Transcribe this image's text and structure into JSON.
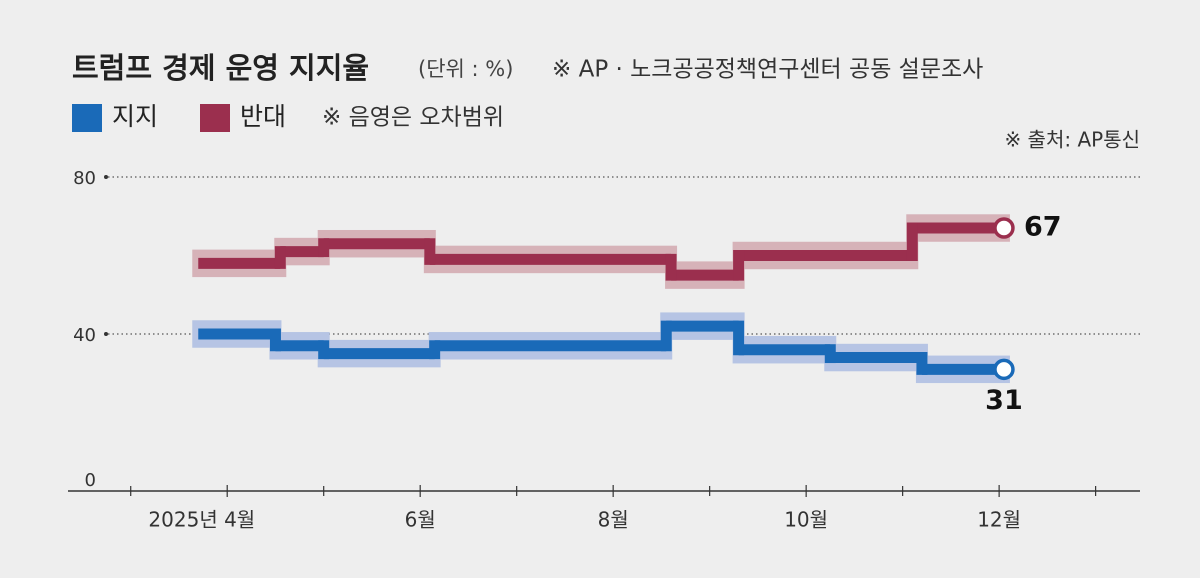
{
  "chart_data": {
    "type": "step",
    "title": "트럼프 경제 운영 지지율",
    "unit_note": "(단위 : %)",
    "subtitle": "※ AP · 노크공공정책연구센터 공동 설문조사",
    "band_note": "※ 음영은 오차범위",
    "source": "※ 출처: AP통신",
    "series": [
      {
        "name": "지지",
        "color": "#1a6ab8",
        "band_color": "#b6c4e4",
        "margin": 3.5,
        "x": [
          3.7,
          4.5,
          5.0,
          6.15,
          8.55,
          9.3,
          10.25,
          11.2,
          12.05
        ],
        "values": [
          40,
          37,
          35,
          37,
          42,
          36,
          34,
          31,
          31
        ]
      },
      {
        "name": "반대",
        "color": "#9b2f4e",
        "band_color": "#d6b2b8",
        "margin": 3.5,
        "x": [
          3.7,
          4.55,
          5.0,
          6.1,
          8.6,
          9.3,
          11.1,
          12.05
        ],
        "values": [
          58,
          61,
          63,
          59,
          55,
          60,
          67,
          67
        ]
      }
    ],
    "xlim": [
      2.35,
      13.46
    ],
    "xticks": [
      {
        "value": 4,
        "label": "2025년 4월"
      },
      {
        "value": 6,
        "label": "6월"
      },
      {
        "value": 8,
        "label": "8월"
      },
      {
        "value": 10,
        "label": "10월"
      },
      {
        "value": 12,
        "label": "12월"
      }
    ],
    "minor_xticks": [
      3,
      5,
      7,
      9,
      11,
      13
    ],
    "ylim": [
      0,
      80
    ],
    "yticks": [
      0,
      40,
      80
    ],
    "grid": true
  }
}
